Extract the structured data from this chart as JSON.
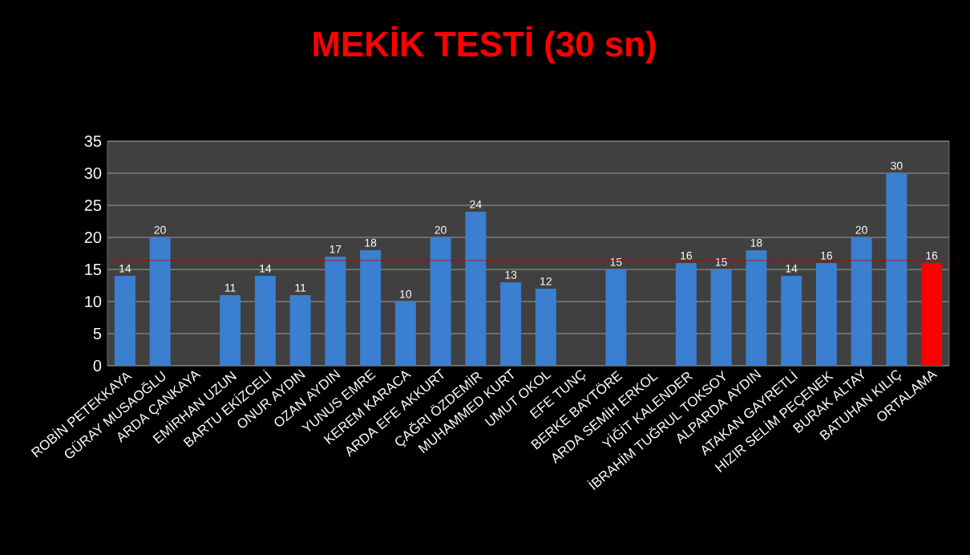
{
  "chart_data": {
    "type": "bar",
    "title": "MEKİK TESTİ (30 sn)",
    "categories": [
      "ROBİN PETEKKAYA",
      "GÜRAY MUSAOĞLU",
      "ARDA ÇANKAYA",
      "EMİRHAN UZUN",
      "BARTU EKİZCELİ",
      "ONUR AYDIN",
      "OZAN AYDIN",
      "YUNUS EMRE",
      "KEREM KARACA",
      "ARDA EFE AKKURT",
      "ÇAĞRI ÖZDEMİR",
      "MUHAMMED KURT",
      "UMUT OKOL",
      "EFE TUNÇ",
      "BERKE BAYTÖRE",
      "ARDA SEMİH ERKOL",
      "YİĞİT KALENDER",
      "İBRAHİM TUĞRUL TOKSOY",
      "ALPARDA AYDIN",
      "ATAKAN GAYRETLİ",
      "HIZIR SELİM PEÇENEK",
      "BURAK ALTAY",
      "BATUHAN KILIÇ",
      "ORTALAMA"
    ],
    "values": [
      14,
      20,
      null,
      11,
      14,
      11,
      17,
      18,
      10,
      20,
      24,
      13,
      12,
      null,
      15,
      null,
      16,
      15,
      18,
      14,
      16,
      20,
      30,
      16
    ],
    "colors": [
      "#3a7fd0",
      "#3a7fd0",
      "#3a7fd0",
      "#3a7fd0",
      "#3a7fd0",
      "#3a7fd0",
      "#3a7fd0",
      "#3a7fd0",
      "#3a7fd0",
      "#3a7fd0",
      "#3a7fd0",
      "#3a7fd0",
      "#3a7fd0",
      "#3a7fd0",
      "#3a7fd0",
      "#3a7fd0",
      "#3a7fd0",
      "#3a7fd0",
      "#3a7fd0",
      "#3a7fd0",
      "#3a7fd0",
      "#3a7fd0",
      "#3a7fd0",
      "#ff0000"
    ],
    "data_labels": true,
    "ylim": [
      0,
      35
    ],
    "yticks": [
      0,
      5,
      10,
      15,
      20,
      25,
      30,
      35
    ],
    "grid": "y",
    "ref_lines": [
      {
        "axis": "y",
        "value": 16.4,
        "color": "#c00000"
      }
    ]
  }
}
